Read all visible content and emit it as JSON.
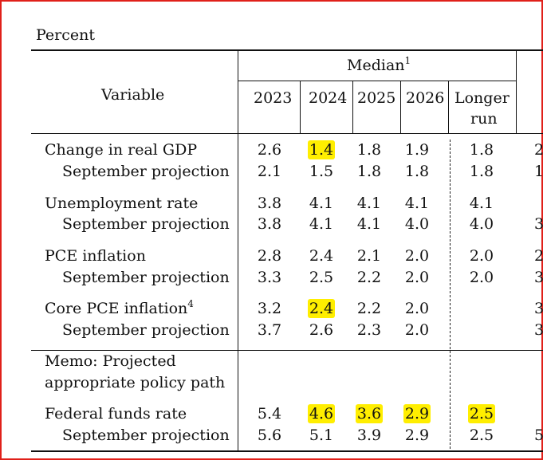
{
  "caption": "Percent",
  "header": {
    "variable_label": "Variable",
    "median_label": "Median",
    "median_note": "1",
    "years": [
      "2023",
      "2024",
      "2025",
      "2026"
    ],
    "longer_run_line1": "Longer",
    "longer_run_line2": "run"
  },
  "rows": [
    {
      "label": "Change in real GDP",
      "values": [
        "2.6",
        "1.4",
        "1.8",
        "1.9",
        "1.8"
      ],
      "clip": "2"
    },
    {
      "label": "September projection",
      "values": [
        "2.1",
        "1.5",
        "1.8",
        "1.8",
        "1.8"
      ],
      "clip": "1"
    },
    {
      "label": "Unemployment rate",
      "values": [
        "3.8",
        "4.1",
        "4.1",
        "4.1",
        "4.1"
      ],
      "clip": ""
    },
    {
      "label": "September projection",
      "values": [
        "3.8",
        "4.1",
        "4.1",
        "4.0",
        "4.0"
      ],
      "clip": "3"
    },
    {
      "label": "PCE inflation",
      "values": [
        "2.8",
        "2.4",
        "2.1",
        "2.0",
        "2.0"
      ],
      "clip": "2"
    },
    {
      "label": "September projection",
      "values": [
        "3.3",
        "2.5",
        "2.2",
        "2.0",
        "2.0"
      ],
      "clip": "3"
    },
    {
      "label": "Core PCE inflation",
      "note": "4",
      "values": [
        "3.2",
        "2.4",
        "2.2",
        "2.0",
        ""
      ],
      "clip": "3"
    },
    {
      "label": "September projection",
      "values": [
        "3.7",
        "2.6",
        "2.3",
        "2.0",
        ""
      ],
      "clip": "3"
    },
    {
      "label": "Federal funds rate",
      "values": [
        "5.4",
        "4.6",
        "3.6",
        "2.9",
        "2.5"
      ],
      "clip": ""
    },
    {
      "label": "September projection",
      "values": [
        "5.6",
        "5.1",
        "3.9",
        "2.9",
        "2.5"
      ],
      "clip": "5"
    }
  ],
  "memo": {
    "line1": "Memo: Projected",
    "line2": "appropriate policy path"
  },
  "highlight_color": "#ffee00",
  "frame_color": "#e0201a"
}
